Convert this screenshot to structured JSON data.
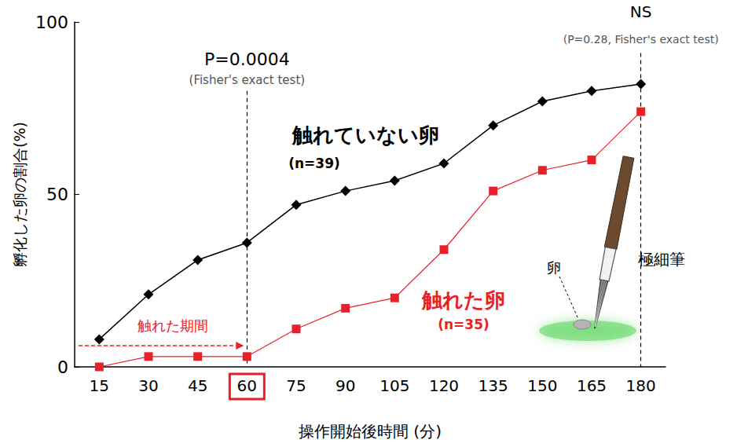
{
  "chart_data": {
    "type": "line",
    "categories": [
      "15",
      "30",
      "45",
      "60",
      "75",
      "90",
      "105",
      "120",
      "135",
      "150",
      "165",
      "180"
    ],
    "xlabel": "操作開始後時間 (分)",
    "ylabel": "孵化した卵の割合(%)",
    "ylim": [
      0,
      100
    ],
    "yticks": [
      0,
      50,
      100
    ],
    "grid": false,
    "highlight_category": "60",
    "series": [
      {
        "name": "触れていない卵",
        "note": "(n=39)",
        "color": "#000000",
        "marker": "diamond",
        "values": [
          8,
          21,
          31,
          36,
          47,
          51,
          54,
          59,
          70,
          77,
          80,
          82
        ]
      },
      {
        "name": "触れた卵",
        "note": "(n=35)",
        "color": "#e8202a",
        "marker": "square",
        "values": [
          0,
          3,
          3,
          3,
          11,
          17,
          20,
          34,
          51,
          57,
          60,
          74
        ]
      }
    ],
    "annotations": [
      {
        "at": "60",
        "texts": [
          "P=0.0004",
          "(Fisher's exact test)"
        ]
      },
      {
        "at": "180",
        "texts": [
          "NS",
          "(P=0.28, Fisher's exact test)"
        ]
      }
    ],
    "period": {
      "label": "触れた期間",
      "end": "60"
    },
    "illustration": {
      "egg": "卵",
      "brush": "極細筆"
    }
  }
}
